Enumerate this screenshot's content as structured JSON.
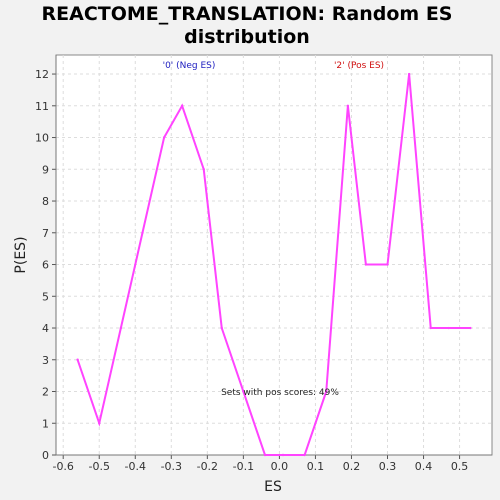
{
  "colors": {
    "line": "#ff44ff",
    "neg_label": "#2020c0",
    "pos_label": "#d01010",
    "grid": "#dddddd",
    "plot_bg": "#ffffff",
    "page_bg": "#f2f2f2"
  },
  "chart_data": {
    "type": "line",
    "title_lines": [
      "REACTOME_TRANSLATION: Random ES",
      "distribution"
    ],
    "xlabel": "ES",
    "ylabel": "P(ES)",
    "xlim": [
      -0.62,
      0.59
    ],
    "ylim": [
      0,
      12.6
    ],
    "xticks": [
      -0.6,
      -0.5,
      -0.4,
      -0.3,
      -0.2,
      -0.1,
      0.0,
      0.1,
      0.2,
      0.3,
      0.4,
      0.5
    ],
    "xtick_labels": [
      "-0.6",
      "-0.5",
      "-0.4",
      "-0.3",
      "-0.2",
      "-0.1",
      "0.0",
      "0.1",
      "0.2",
      "0.3",
      "0.4",
      "0.5"
    ],
    "yticks": [
      0,
      1,
      2,
      3,
      4,
      5,
      6,
      7,
      8,
      9,
      10,
      11,
      12
    ],
    "ytick_labels": [
      "0",
      "1",
      "2",
      "3",
      "4",
      "5",
      "6",
      "7",
      "8",
      "9",
      "10",
      "11",
      "12"
    ],
    "grid": true,
    "series": [
      {
        "x": [
          -0.56,
          -0.5,
          -0.44,
          -0.38,
          -0.32,
          -0.27,
          -0.21,
          -0.16,
          -0.1,
          -0.04,
          0.01,
          0.07,
          0.13,
          0.19,
          0.24,
          0.3,
          0.36,
          0.42,
          0.47,
          0.53
        ],
        "y": [
          3,
          1,
          4,
          7,
          10,
          11,
          9,
          4,
          2,
          0,
          0,
          0,
          2,
          11,
          6,
          6,
          12,
          4,
          4,
          4
        ]
      }
    ],
    "annotations": {
      "neg_label": "'0' (Neg ES)",
      "pos_label": "'2' (Pos ES)",
      "pos_scores": "Sets with pos scores: 49%"
    }
  }
}
